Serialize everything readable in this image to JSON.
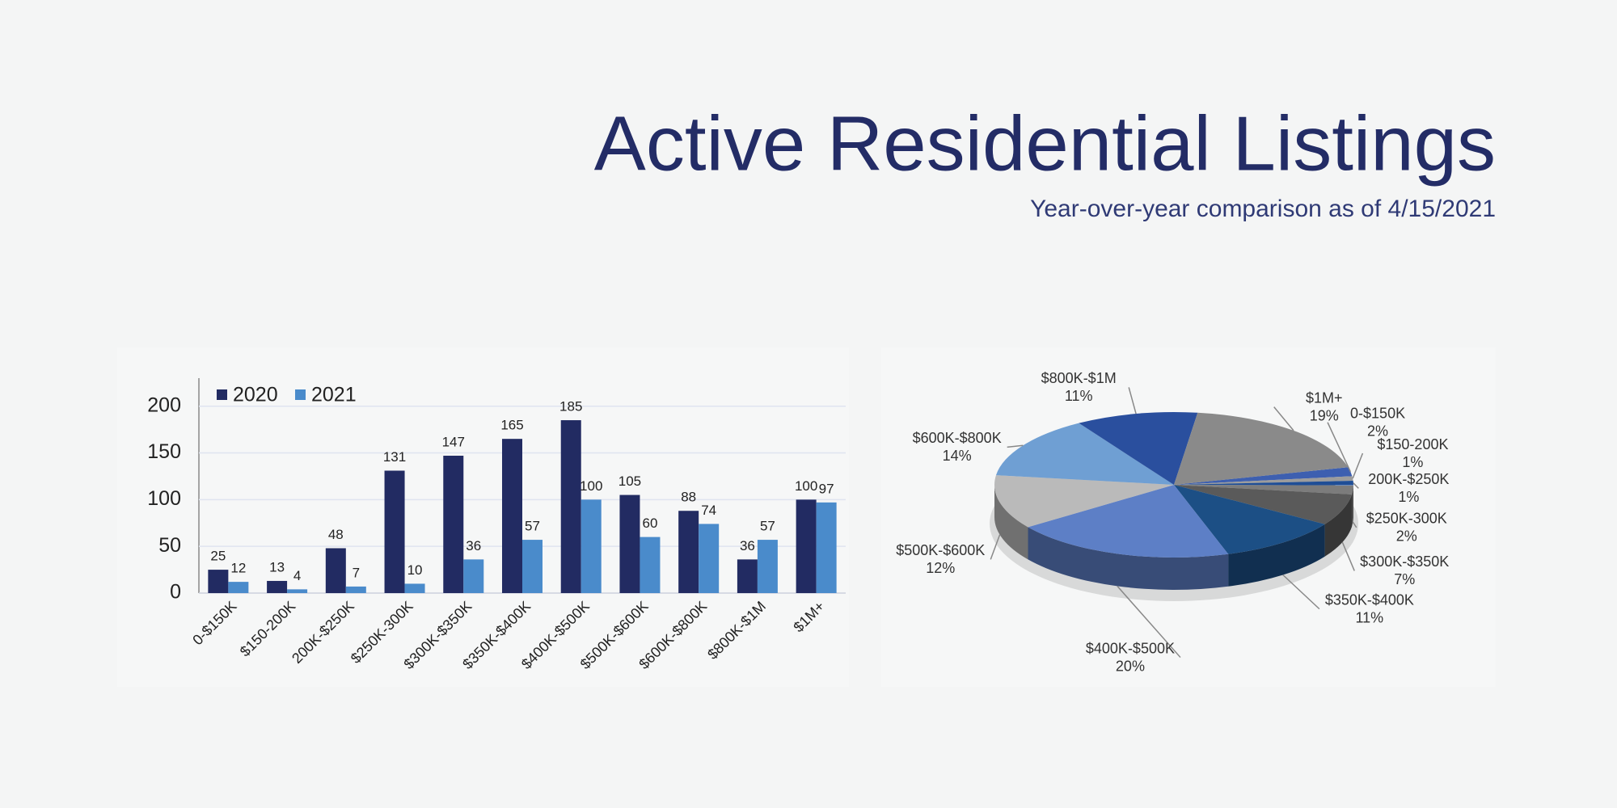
{
  "header": {
    "title": "Active Residential Listings",
    "subtitle": "Year-over-year comparison as of 4/15/2021"
  },
  "chart_data": [
    {
      "type": "bar",
      "categories": [
        "0-$150K",
        "$150-200K",
        "200K-$250K",
        "$250K-300K",
        "$300K-$350K",
        "$350K-$400K",
        "$400K-$500K",
        "$500K-$600K",
        "$600K-$800K",
        "$800K-$1M",
        "$1M+"
      ],
      "series": [
        {
          "name": "2020",
          "color": "#222b62",
          "values": [
            25,
            13,
            48,
            131,
            147,
            165,
            185,
            105,
            88,
            36,
            100
          ]
        },
        {
          "name": "2021",
          "color": "#4a8bcb",
          "values": [
            12,
            4,
            7,
            10,
            36,
            57,
            100,
            60,
            74,
            57,
            97
          ]
        }
      ],
      "ylim": [
        0,
        230
      ],
      "yticks": [
        0,
        50,
        100,
        150,
        200
      ],
      "grid": true,
      "legend": "top-left"
    },
    {
      "type": "pie",
      "categories": [
        "0-$150K",
        "$150-200K",
        "200K-$250K",
        "$250K-300K",
        "$300K-$350K",
        "$350K-$400K",
        "$400K-$500K",
        "$500K-$600K",
        "$600K-$800K",
        "$800K-$1M",
        "$1M+"
      ],
      "values": [
        2,
        1,
        1,
        2,
        7,
        11,
        20,
        12,
        14,
        11,
        19
      ],
      "value_labels": [
        "2%",
        "1%",
        "1%",
        "2%",
        "7%",
        "11%",
        "20%",
        "12%",
        "14%",
        "11%",
        "19%"
      ],
      "colors": [
        "#3d5fb0",
        "#9c9c9c",
        "#1f4e96",
        "#7c7c7c",
        "#5a5a5a",
        "#1c4f85",
        "#5d7fc6",
        "#bababa",
        "#6f9fd3",
        "#2a4f9e",
        "#8a8a8a"
      ]
    }
  ]
}
